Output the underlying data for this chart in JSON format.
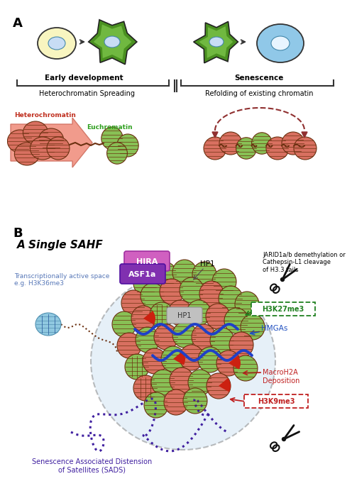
{
  "bg_color": "#ffffff",
  "panel_a_label": "A",
  "panel_b_label": "B",
  "early_dev_label": "Early development",
  "senescence_label": "Senescence",
  "hetero_spreading_label": "Heterochromatin Spreading",
  "refolding_label": "Refolding of existing chromatin",
  "heterochromatin_text": "Heterochromatin",
  "euchromatin_text": "Euchromatin",
  "heterochromatin_color": "#d87060",
  "euchromatin_color": "#88c055",
  "nucleosome_border": "#6b3010",
  "single_sahf_label": "A Single SAHF",
  "hira_color": "#c060c0",
  "asf1a_color": "#8040b0",
  "hp1_color": "#b8b8b8",
  "blue_wave_color": "#2040c8",
  "dashed_circle_color": "#707070",
  "transcriptionally_active": "Transcriptionally active space\ne.g. H3K36me3",
  "sads_label": "Senescence Associated Distension\nof Satellites (SADS)",
  "sads_color": "#4020a0",
  "h3k27me3_label": "H3K27me3",
  "h3k27me3_color": "#208020",
  "hmgas_label": "HMGAs",
  "hmgas_color": "#2050c0",
  "macroh2a_label": "MacroH2A\nDeposition",
  "macroh2a_color": "#c02020",
  "h3k9me3_label": "H3K9me3",
  "h3k9me3_color": "#c02020",
  "jarid_label": "JARID1a/b demethylation or\nCathepsin-L1 cleavage\nof H3.3 tails",
  "red_arrow_color": "#902020",
  "dashed_arc_color": "#903030",
  "light_blue_fill": "#c8dff0",
  "cell_yellow": "#f8f5c0",
  "cell_green_dark": "#4a9020",
  "cell_green_light": "#70b840",
  "cell_blue": "#90c8e8",
  "macro_red": "#cc2010"
}
